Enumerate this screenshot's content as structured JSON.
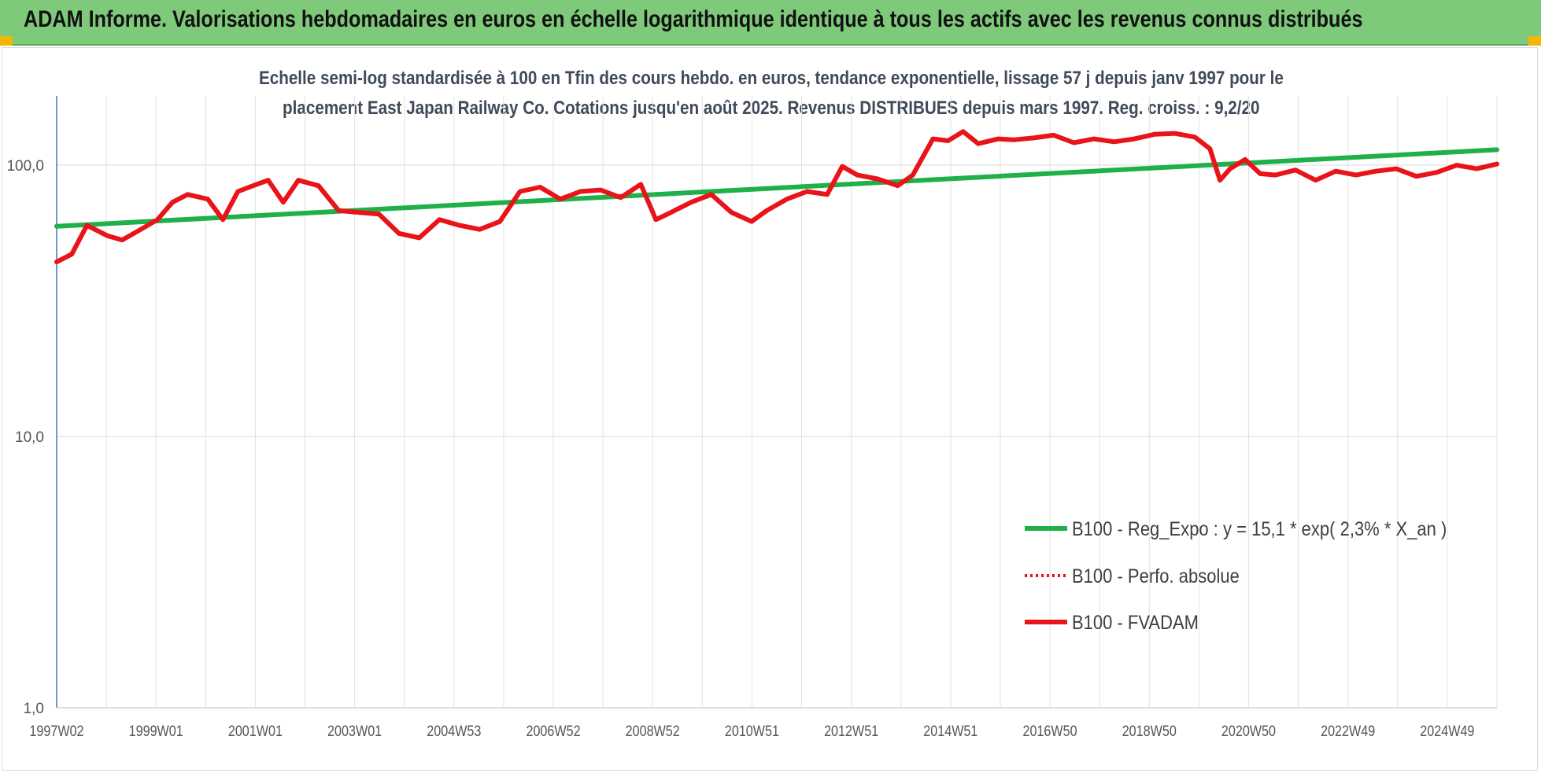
{
  "banner": {
    "title": "ADAM Informe. Valorisations hebdomadaires en euros en échelle logarithmique identique à tous les actifs avec les revenus connus distribués",
    "background": "#7ec97a",
    "corner_color": "#f2b705"
  },
  "chart_data": {
    "type": "line",
    "title_line1": "Echelle semi-log standardisée à 100 en Tfin des cours hebdo. en euros, tendance exponentielle, lissage 57 j depuis janv 1997 pour le",
    "title_line2": "placement East Japan Railway Co. Cotations jusqu'en août 2025. Revenus DISTRIBUES depuis mars 1997. Reg. croiss. : 9,2/20",
    "y_scale": "log",
    "ylim": [
      1,
      180
    ],
    "y_ticks": [
      "1,0",
      "10,0",
      "100,0"
    ],
    "x_ticks": [
      "1997W02",
      "1999W01",
      "2001W01",
      "2003W01",
      "2004W53",
      "2006W52",
      "2008W52",
      "2010W51",
      "2012W51",
      "2014W51",
      "2016W50",
      "2018W50",
      "2020W50",
      "2022W49",
      "2024W49"
    ],
    "xlim": [
      1997.0,
      2025.6
    ],
    "grid": "vertical and horizontal",
    "legend_position": "right",
    "series": [
      {
        "name": "B100 - Reg_Expo : y = 15,1 * exp( 2,3% *  X_an )",
        "color": "#1fb04a",
        "style": "solid",
        "x": [
          1997.0,
          2025.6
        ],
        "values": [
          59.5,
          114.0
        ]
      },
      {
        "name": "B100 - Perfo. absolue",
        "color": "#e8141a",
        "style": "dotted",
        "x": [],
        "values": []
      },
      {
        "name": "B100 - FVADAM",
        "color": "#e8141a",
        "style": "solid",
        "x": [
          1997.0,
          1997.3,
          1997.6,
          1998.0,
          1998.3,
          1998.6,
          1999.0,
          1999.3,
          1999.6,
          2000.0,
          2000.3,
          2000.6,
          2000.9,
          2001.2,
          2001.5,
          2001.8,
          2002.2,
          2002.6,
          2003.0,
          2003.4,
          2003.8,
          2004.2,
          2004.6,
          2005.0,
          2005.4,
          2005.8,
          2006.2,
          2006.6,
          2007.0,
          2007.4,
          2007.8,
          2008.2,
          2008.6,
          2008.9,
          2009.2,
          2009.6,
          2010.0,
          2010.4,
          2010.8,
          2011.1,
          2011.5,
          2011.9,
          2012.3,
          2012.6,
          2012.9,
          2013.3,
          2013.7,
          2014.0,
          2014.4,
          2014.7,
          2015.0,
          2015.3,
          2015.7,
          2016.0,
          2016.4,
          2016.8,
          2017.2,
          2017.6,
          2018.0,
          2018.4,
          2018.8,
          2019.2,
          2019.6,
          2019.9,
          2020.1,
          2020.3,
          2020.6,
          2020.9,
          2021.2,
          2021.6,
          2022.0,
          2022.4,
          2022.8,
          2023.2,
          2023.6,
          2024.0,
          2024.4,
          2024.8,
          2025.2,
          2025.6
        ],
        "values": [
          44,
          47,
          60,
          55,
          53,
          57,
          63,
          73,
          78,
          75,
          63,
          80,
          84,
          88,
          73,
          88,
          84,
          68,
          67,
          66,
          56,
          54,
          63,
          60,
          58,
          62,
          80,
          83,
          75,
          80,
          81,
          76,
          85,
          63,
          67,
          73,
          78,
          67,
          62,
          68,
          75,
          80,
          78,
          99,
          92,
          89,
          84,
          92,
          125,
          123,
          133,
          120,
          125,
          124,
          126,
          129,
          121,
          125,
          122,
          125,
          130,
          131,
          127,
          115,
          88,
          97,
          105,
          93,
          92,
          96,
          88,
          95,
          92,
          95,
          97,
          91,
          94,
          100,
          97,
          101
        ]
      }
    ]
  }
}
